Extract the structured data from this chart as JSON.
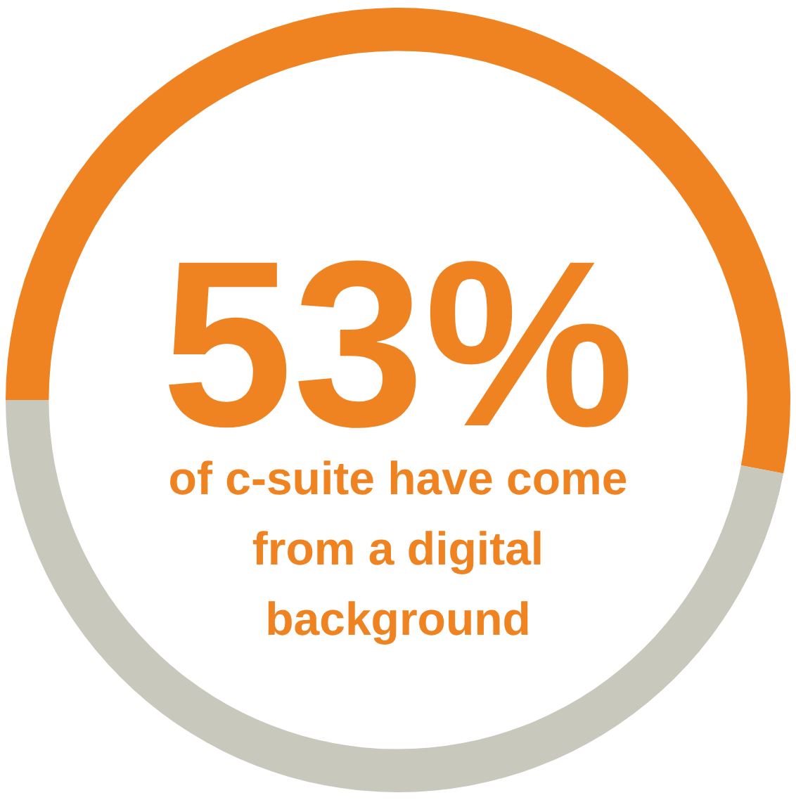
{
  "chart_data": {
    "type": "donut",
    "categories": [
      null,
      null
    ],
    "values": [
      53,
      47
    ],
    "colors": [
      "#f08321",
      "#c9c8bc"
    ],
    "value_labels": [
      "53%",
      null
    ],
    "annotations": [
      "of c-suite have come from a digital background"
    ],
    "legend": false
  }
}
